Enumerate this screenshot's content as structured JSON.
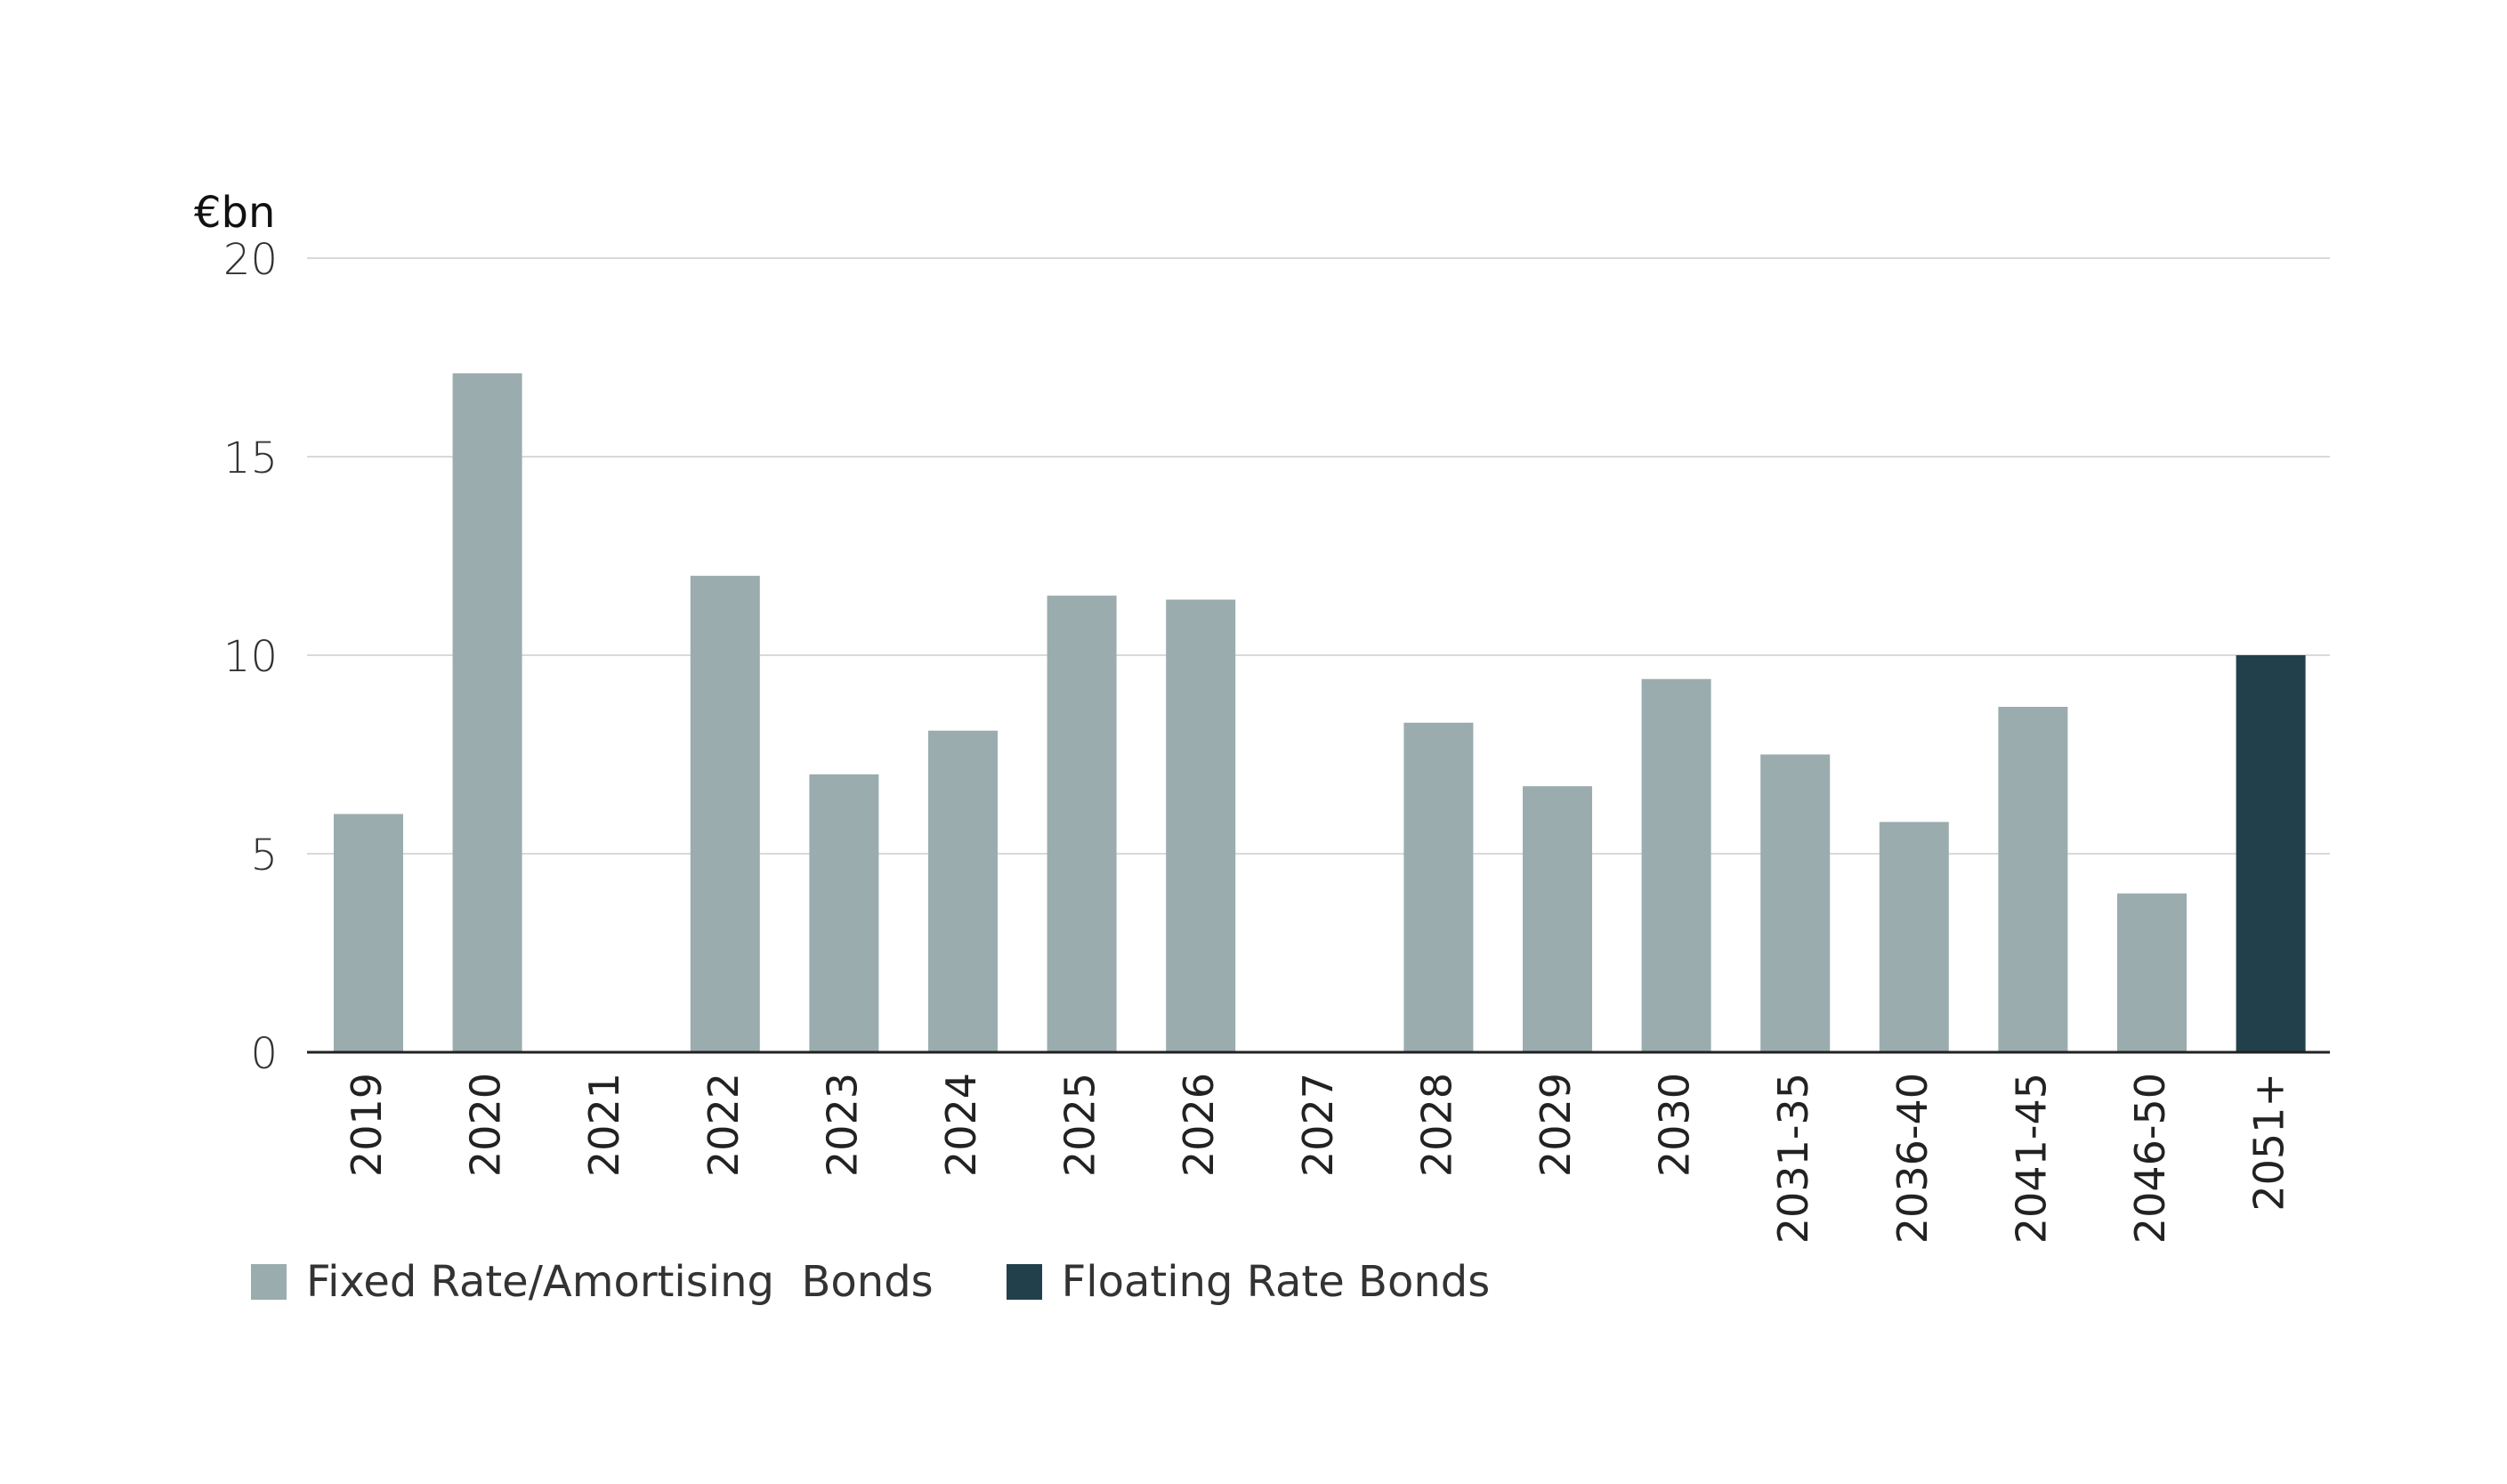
{
  "chart_data": {
    "type": "bar",
    "unit_label": "€bn",
    "title": "",
    "xlabel": "",
    "ylabel": "€bn",
    "ylim": [
      0,
      20
    ],
    "yticks": [
      0,
      5,
      10,
      15,
      20
    ],
    "grid": true,
    "legend_position": "bottom-left",
    "categories": [
      "2019",
      "2020",
      "2021",
      "2022",
      "2023",
      "2024",
      "2025",
      "2026",
      "2027",
      "2028",
      "2029",
      "2030",
      "2031-35",
      "2036-40",
      "2041-45",
      "2046-50",
      "2051+"
    ],
    "series": [
      {
        "name": "Fixed Rate/Amortising  Bonds",
        "color": "#9aacae",
        "values": [
          6.0,
          17.1,
          0,
          12.0,
          7.0,
          8.1,
          11.5,
          11.4,
          0,
          8.3,
          6.7,
          9.4,
          7.5,
          5.8,
          8.7,
          4.0,
          0
        ]
      },
      {
        "name": "Floating Rate Bonds",
        "color": "#22404c",
        "values": [
          0,
          0,
          0,
          0,
          0,
          0,
          0,
          0,
          0,
          0,
          0,
          0,
          0,
          0,
          0,
          0,
          10.0
        ]
      }
    ]
  }
}
